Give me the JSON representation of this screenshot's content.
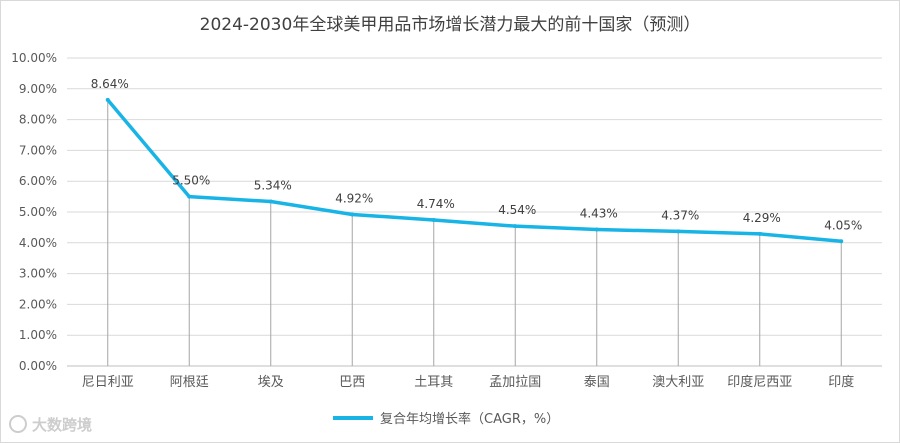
{
  "chart_data": {
    "type": "line",
    "title": "2024-2030年全球美甲用品市场增长潜力最大的前十国家（预测）",
    "categories": [
      "尼日利亚",
      "阿根廷",
      "埃及",
      "巴西",
      "土耳其",
      "孟加拉国",
      "泰国",
      "澳大利亚",
      "印度尼西亚",
      "印度"
    ],
    "series": [
      {
        "name": "复合年均增长率（CAGR，%）",
        "values": [
          8.64,
          5.5,
          5.34,
          4.92,
          4.74,
          4.54,
          4.43,
          4.37,
          4.29,
          4.05
        ],
        "labels": [
          "8.64%",
          "5.50%",
          "5.34%",
          "4.92%",
          "4.74%",
          "4.54%",
          "4.43%",
          "4.37%",
          "4.29%",
          "4.05%"
        ],
        "color": "#19b4e6"
      }
    ],
    "ylim": [
      0,
      10
    ],
    "yticks": [
      "0.00%",
      "1.00%",
      "2.00%",
      "3.00%",
      "4.00%",
      "5.00%",
      "6.00%",
      "7.00%",
      "8.00%",
      "9.00%",
      "10.00%"
    ],
    "drop_lines": true,
    "grid": true,
    "legend_position": "bottom"
  },
  "watermark": "大数跨境",
  "colors": {
    "grid": "#d9d9d9",
    "drop_line": "#a6a6a6",
    "text": "#595959"
  }
}
